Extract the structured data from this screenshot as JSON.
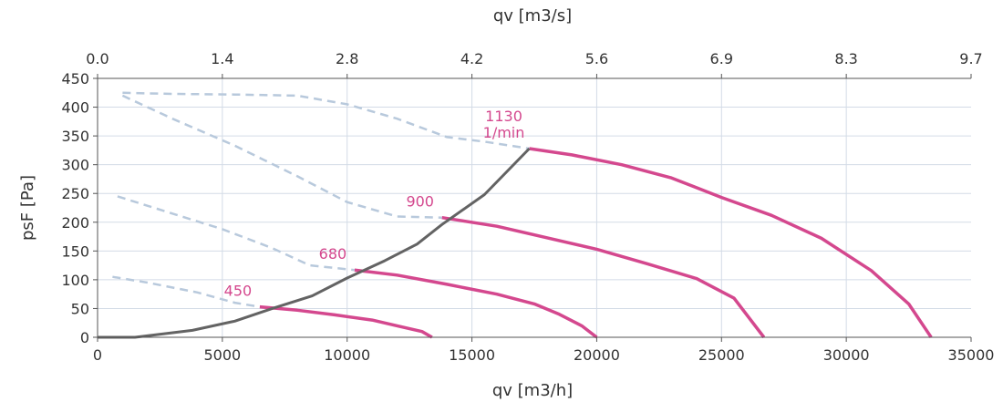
{
  "chart_data": {
    "type": "line",
    "xlabel": "qv [m3/h]",
    "x2label": "qv [m3/s]",
    "ylabel": "psF [Pa]",
    "xlim": [
      0,
      35000
    ],
    "ylim": [
      0,
      450
    ],
    "x_ticks": [
      0,
      5000,
      10000,
      15000,
      20000,
      25000,
      30000,
      35000
    ],
    "x_tick_labels": [
      "0",
      "5000",
      "10000",
      "15000",
      "20000",
      "25000",
      "30000",
      "35000"
    ],
    "x2_tick_labels": [
      "0.0",
      "1.4",
      "2.8",
      "4.2",
      "5.6",
      "6.9",
      "8.3",
      "9.7"
    ],
    "y_ticks": [
      0,
      50,
      100,
      150,
      200,
      250,
      300,
      350,
      400,
      450
    ],
    "y_tick_labels": [
      "0",
      "50",
      "100",
      "150",
      "200",
      "250",
      "300",
      "350",
      "400",
      "450"
    ],
    "grid": true,
    "colors": {
      "speed_curve": "#d4488e",
      "stall_curve": "#b8c9dc",
      "limit_curve": "#636363",
      "grid": "#d3dbe6",
      "axis": "#555555",
      "text": "#333333"
    },
    "series": [
      {
        "label": "1130",
        "sublabel": "1/min",
        "style": "solid",
        "points": [
          [
            17300,
            328
          ],
          [
            19000,
            317
          ],
          [
            21000,
            300
          ],
          [
            23000,
            277
          ],
          [
            25000,
            243
          ],
          [
            27000,
            212
          ],
          [
            29000,
            172
          ],
          [
            31000,
            116
          ],
          [
            32500,
            58
          ],
          [
            33400,
            0
          ]
        ]
      },
      {
        "label": "900",
        "style": "solid",
        "points": [
          [
            13800,
            208
          ],
          [
            16000,
            193
          ],
          [
            18000,
            173
          ],
          [
            20000,
            153
          ],
          [
            22000,
            128
          ],
          [
            24000,
            102
          ],
          [
            25500,
            68
          ],
          [
            26700,
            0
          ]
        ]
      },
      {
        "label": "680",
        "style": "solid",
        "points": [
          [
            10300,
            117
          ],
          [
            12000,
            108
          ],
          [
            14000,
            92
          ],
          [
            16000,
            75
          ],
          [
            17500,
            58
          ],
          [
            18500,
            40
          ],
          [
            19400,
            20
          ],
          [
            20000,
            0
          ]
        ]
      },
      {
        "label": "450",
        "style": "solid",
        "points": [
          [
            6500,
            53
          ],
          [
            8000,
            47
          ],
          [
            9500,
            39
          ],
          [
            11000,
            30
          ],
          [
            12000,
            20
          ],
          [
            13000,
            10
          ],
          [
            13400,
            0
          ]
        ]
      },
      {
        "style": "dashed",
        "points": [
          [
            1000,
            425
          ],
          [
            3000,
            423
          ],
          [
            5500,
            422
          ],
          [
            8000,
            420
          ],
          [
            10000,
            405
          ],
          [
            12000,
            380
          ],
          [
            14000,
            348
          ],
          [
            15500,
            340
          ],
          [
            17300,
            328
          ]
        ]
      },
      {
        "style": "dashed",
        "points": [
          [
            1000,
            420
          ],
          [
            3000,
            380
          ],
          [
            5500,
            333
          ],
          [
            8000,
            280
          ],
          [
            10000,
            235
          ],
          [
            12000,
            210
          ],
          [
            13800,
            208
          ]
        ]
      },
      {
        "style": "dashed",
        "points": [
          [
            800,
            245
          ],
          [
            3000,
            215
          ],
          [
            5000,
            188
          ],
          [
            7000,
            155
          ],
          [
            8500,
            125
          ],
          [
            10300,
            117
          ]
        ]
      },
      {
        "style": "dashed",
        "points": [
          [
            600,
            105
          ],
          [
            2000,
            95
          ],
          [
            4000,
            78
          ],
          [
            5500,
            60
          ],
          [
            6500,
            53
          ]
        ]
      },
      {
        "style": "limit",
        "points": [
          [
            0,
            0
          ],
          [
            1500,
            0
          ],
          [
            3800,
            12
          ],
          [
            5500,
            28
          ],
          [
            7000,
            50
          ],
          [
            8600,
            72
          ],
          [
            10000,
            103
          ],
          [
            11500,
            133
          ],
          [
            12800,
            162
          ],
          [
            13800,
            196
          ],
          [
            15500,
            248
          ],
          [
            17300,
            328
          ]
        ]
      }
    ]
  }
}
